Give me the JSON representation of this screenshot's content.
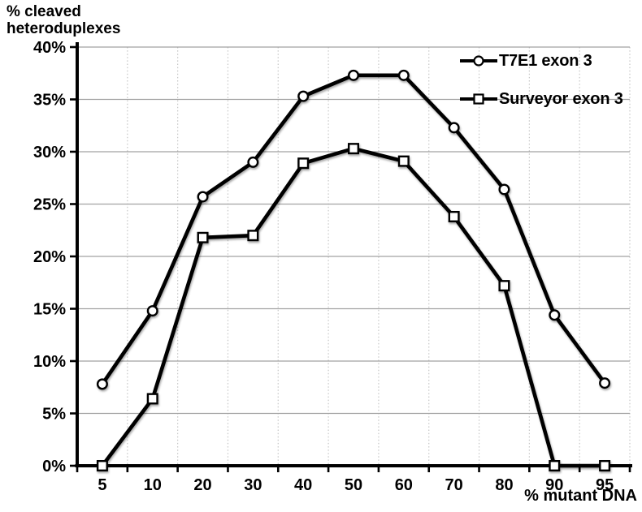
{
  "chart_data": {
    "type": "line",
    "title": "",
    "ylabel": "% cleaved\nheteroduplexes",
    "xlabel": "% mutant DNA",
    "categories": [
      "5",
      "10",
      "20",
      "30",
      "40",
      "50",
      "60",
      "70",
      "80",
      "90",
      "95"
    ],
    "series": [
      {
        "name": "T7E1 exon 3",
        "marker": "circle",
        "values": [
          7.8,
          14.8,
          25.7,
          29.0,
          35.3,
          37.3,
          37.3,
          32.3,
          26.4,
          14.4,
          7.9
        ]
      },
      {
        "name": "Surveyor exon 3",
        "marker": "square",
        "values": [
          0.0,
          6.4,
          21.8,
          22.0,
          28.9,
          30.3,
          29.1,
          23.8,
          17.2,
          0.0,
          0.0
        ]
      }
    ],
    "ylim": [
      0,
      40
    ],
    "ytick_step": 5,
    "ytick_labels": [
      "0%",
      "5%",
      "10%",
      "15%",
      "20%",
      "25%",
      "30%",
      "35%",
      "40%"
    ],
    "grid": {
      "horizontal": "solid-gray",
      "vertical": "dotted-light"
    },
    "legend_position": "top-right-inside",
    "colors": {
      "line": "#000000",
      "marker_fill": "#ffffff",
      "grid_horizontal": "#a2a2a2",
      "grid_vertical": "#c6c6c6",
      "text": "#000000",
      "background": "#ffffff"
    }
  }
}
